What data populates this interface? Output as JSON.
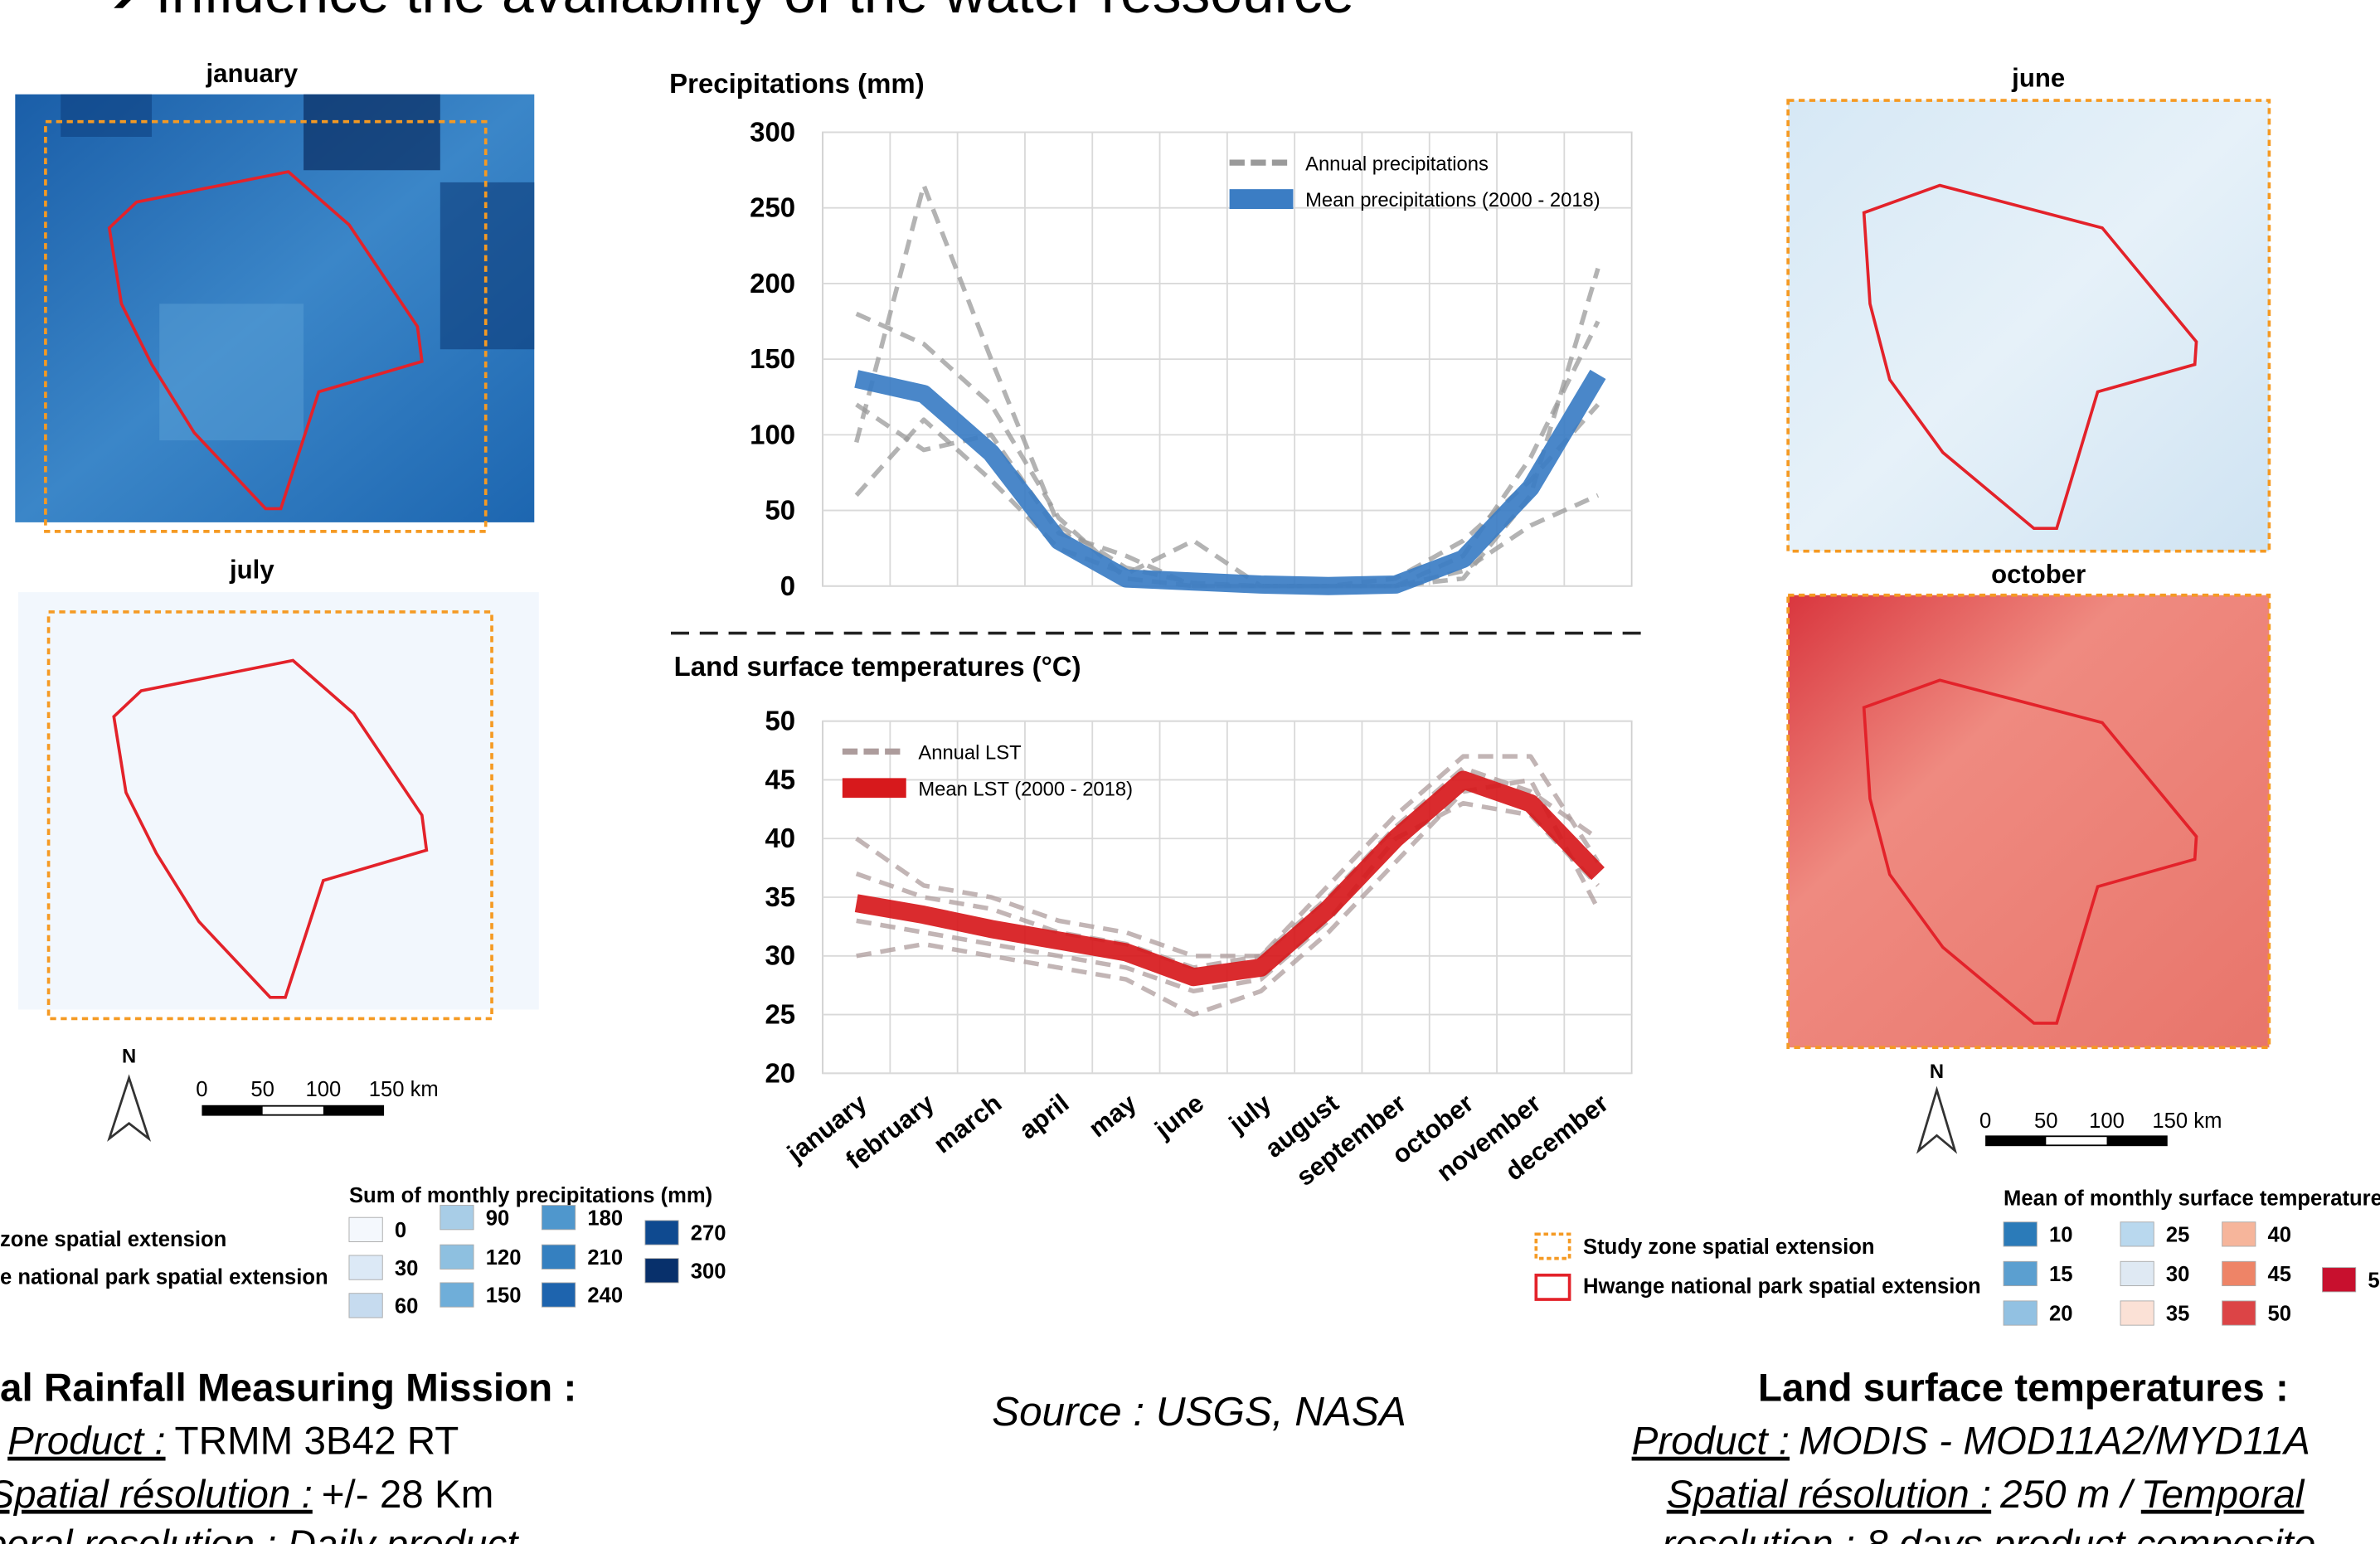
{
  "title": "➔ Influence the availability of the water ressource",
  "maps": {
    "january": "january",
    "july": "july",
    "june": "june",
    "october": "october"
  },
  "left_legend": {
    "study_zone": "zone spatial extension",
    "park": "e national park spatial extension",
    "title": "Sum of monthly precipitations (mm)",
    "values": [
      0,
      30,
      60,
      90,
      120,
      150,
      180,
      210,
      240,
      270,
      300
    ],
    "colors": [
      "#f4f8fd",
      "#dce9f6",
      "#c6dbef",
      "#a8cde7",
      "#8ec0e0",
      "#6faed9",
      "#4f97cd",
      "#3580c0",
      "#1e64ae",
      "#0f4a90",
      "#08306b"
    ]
  },
  "right_legend": {
    "study_zone": "Study zone spatial extension",
    "park": "Hwange national park spatial extension",
    "title": "Mean of monthly surface temperature",
    "values": [
      10,
      15,
      20,
      25,
      30,
      35,
      40,
      45,
      50,
      "5"
    ],
    "colors": [
      "#2b7bb9",
      "#5b9fd0",
      "#92c1e2",
      "#b9d8ee",
      "#dfe9f3",
      "#fbe1d6",
      "#f6b59b",
      "#ee8467",
      "#dc4446",
      "#c8102e"
    ]
  },
  "scale_left": {
    "north": "N",
    "ticks": [
      0,
      50,
      100,
      "150 km"
    ]
  },
  "scale_right": {
    "north": "N",
    "ticks": [
      0,
      50,
      100,
      "150 km"
    ]
  },
  "bottom_left": {
    "heading": "al Rainfall Measuring Mission :",
    "product_label": "Product :",
    "product": "TRMM 3B42 RT",
    "resolution_label": "Spatial résolution :",
    "resolution": "+/- 28 Km",
    "temporal": "poral resolution : Daily product"
  },
  "source": "Source : USGS, NASA",
  "bottom_right": {
    "heading": "Land surface temperatures :",
    "product_label": "Product :",
    "product": "MODIS - MOD11A2/MYD11A",
    "resolution_label": "Spatial résolution :",
    "resolution": "250 m /",
    "temporal_label": "Temporal",
    "temporal": "resolution : 8 days product composite"
  },
  "chart_data": [
    {
      "type": "line",
      "title": "Precipitations (mm)",
      "ylim": [
        0,
        300
      ],
      "yticks": [
        0,
        50,
        100,
        150,
        200,
        250,
        300
      ],
      "grid": true,
      "legend": "upper right",
      "series": [
        {
          "name": "Annual precipitations",
          "color": "#9a9a9a",
          "values": [
            [
              95,
              265,
              150,
              40,
              12,
              2,
              0,
              0,
              0,
              5,
              60,
              210
            ],
            [
              60,
              110,
              70,
              25,
              8,
              30,
              0,
              0,
              0,
              10,
              40,
              60
            ],
            [
              180,
              160,
              120,
              45,
              5,
              0,
              0,
              0,
              0,
              20,
              85,
              175
            ],
            [
              120,
              90,
              100,
              35,
              20,
              0,
              0,
              0,
              5,
              30,
              70,
              120
            ]
          ]
        },
        {
          "name": "Mean precipitations (2000 - 2018)",
          "color": "#3b7dc4",
          "values": [
            137,
            127,
            88,
            30,
            5,
            3,
            1,
            0,
            1,
            18,
            65,
            140
          ]
        }
      ]
    },
    {
      "type": "line",
      "title": "Land surface temperatures (°C)",
      "ylim": [
        20,
        50
      ],
      "yticks": [
        20,
        25,
        30,
        35,
        40,
        45,
        50
      ],
      "grid": true,
      "legend": "upper left",
      "categories": [
        "january",
        "february",
        "march",
        "april",
        "may",
        "june",
        "july",
        "august",
        "september",
        "october",
        "november",
        "december"
      ],
      "series": [
        {
          "name": "Annual LST",
          "color": "#ad9c9c",
          "values": [
            [
              40,
              36,
              35,
              33,
              32,
              30,
              30,
              36,
              42,
              47,
              47,
              38
            ],
            [
              30,
              31,
              30,
              29,
              28,
              25,
              27,
              32,
              38,
              44,
              45,
              34
            ],
            [
              37,
              35,
              34,
              32,
              31,
              29,
              30,
              35,
              41,
              46,
              44,
              40
            ],
            [
              33,
              32,
              31,
              30,
              29,
              27,
              28,
              33,
              40,
              43,
              42,
              36
            ]
          ]
        },
        {
          "name": "Mean LST (2000 - 2018)",
          "color": "#d7191c",
          "values": [
            34.5,
            33.5,
            32.3,
            31.3,
            30.3,
            28.2,
            29,
            34,
            40,
            45,
            43,
            37
          ]
        }
      ]
    }
  ]
}
